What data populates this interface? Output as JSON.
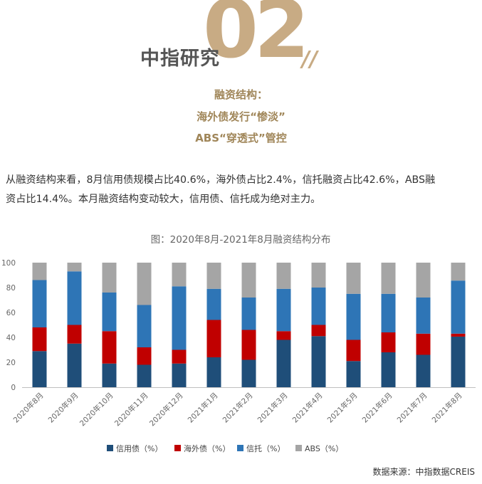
{
  "header": {
    "brand": "中指研究",
    "section_number": "02",
    "subtitle_lines": [
      "融资结构：",
      "海外债发行“惨淡”",
      "ABS“穿透式”管控"
    ]
  },
  "body": {
    "paragraph_line1": "从融资结构来看，8月信用债规模占比40.6%，海外债占比2.4%，信托融资占比42.6%，ABS融",
    "paragraph_line2": "资占比14.4%。本月融资结构变动较大，信用债、信托成为绝对主力。"
  },
  "source": "数据来源：中指数据CREIS",
  "colors": {
    "gold": "#c8ab84",
    "series": [
      "#1f4e79",
      "#c00000",
      "#2e75b6",
      "#a5a5a5"
    ]
  },
  "chart_data": {
    "type": "bar",
    "stacked": true,
    "title": "图：2020年8月-2021年8月融资结构分布",
    "categories": [
      "2020年8月",
      "2020年9月",
      "2020年10月",
      "2020年11月",
      "2020年12月",
      "2021年1月",
      "2021年2月",
      "2021年3月",
      "2021年4月",
      "2021年5月",
      "2021年6月",
      "2021年7月",
      "2021年8月"
    ],
    "series": [
      {
        "name": "信用债（%）",
        "values": [
          29,
          35,
          19,
          18,
          19,
          24,
          22,
          38,
          41,
          21,
          28,
          26,
          40.6
        ]
      },
      {
        "name": "海外债（%）",
        "values": [
          19,
          15,
          26,
          14,
          11,
          30,
          24,
          7,
          9,
          17,
          16,
          17,
          2.4
        ]
      },
      {
        "name": "信托（%）",
        "values": [
          38,
          43,
          31,
          34,
          51,
          25,
          26,
          34,
          30,
          37,
          31,
          29,
          42.6
        ]
      },
      {
        "name": "ABS（%）",
        "values": [
          14,
          7,
          24,
          34,
          19,
          21,
          28,
          21,
          20,
          25,
          25,
          28,
          14.4
        ]
      }
    ],
    "ylim": [
      0,
      100
    ],
    "yticks": [
      0,
      20,
      40,
      60,
      80,
      100
    ],
    "legend_position": "bottom"
  }
}
